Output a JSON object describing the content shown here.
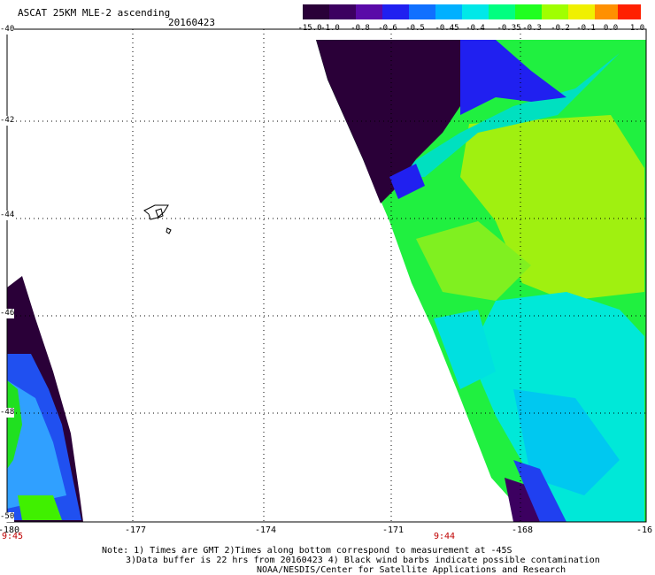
{
  "header": {
    "title": "ASCAT 25KM MLE-2 ascending",
    "date": "20160423"
  },
  "colorbar": {
    "labels": [
      "-15.0",
      "-1.0",
      "-0.8",
      "-0.6",
      "-0.5",
      "-0.45",
      "-0.4",
      "-0.35",
      "-0.3",
      "-0.2",
      "-0.1",
      "0.0",
      "1.0"
    ],
    "colors": [
      "#2a0038",
      "#3c0060",
      "#5a0aa8",
      "#2020f0",
      "#1070ff",
      "#00b0ff",
      "#00e8e8",
      "#00ff80",
      "#20ff20",
      "#a0ff00",
      "#f0f000",
      "#ff9000",
      "#ff2000"
    ]
  },
  "axes": {
    "lat_ticks": [
      "-40",
      "-42",
      "-44",
      "-46",
      "-48",
      "-50"
    ],
    "lon_ticks": [
      "-180",
      "-177",
      "-174",
      "-171",
      "-168",
      "-16"
    ],
    "times": [
      {
        "label": "9:45"
      },
      {
        "label": "9:44"
      }
    ]
  },
  "notes": {
    "line1": "Note: 1) Times are GMT 2)Times along bottom correspond to measurement at -45S",
    "line2": "3)Data buffer is 22 hrs from 20160423 4) Black wind barbs indicate possible contamination",
    "line3": "NOAA/NESDIS/Center for Satellite Applications and Research"
  }
}
